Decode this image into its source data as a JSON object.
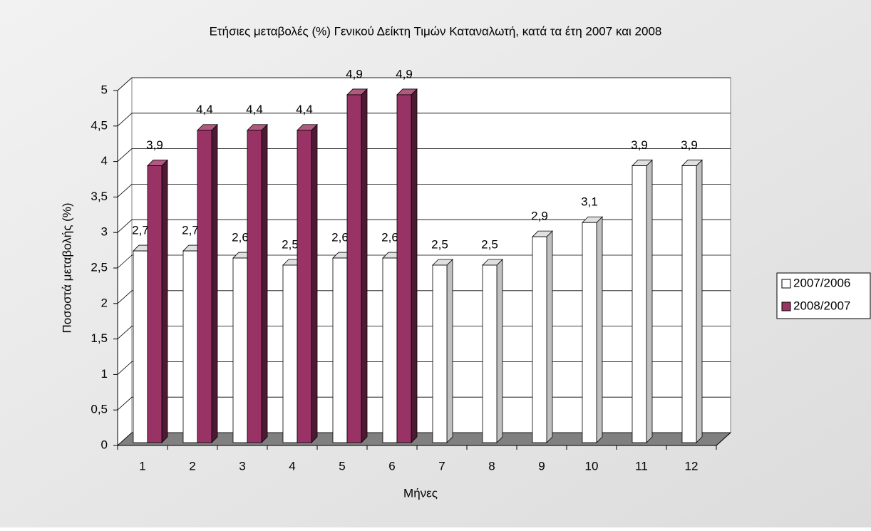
{
  "chart_data": {
    "type": "bar3d",
    "title": "Ετήσιες μεταβολές (%) Γενικού Δείκτη Τιμών Καταναλωτή, κατά τα έτη 2007 και 2008",
    "x_label": "Μήνες",
    "y_label": "Ποσοστά μεταβολής (%)",
    "categories": [
      "1",
      "2",
      "3",
      "4",
      "5",
      "6",
      "7",
      "8",
      "9",
      "10",
      "11",
      "12"
    ],
    "series": [
      {
        "name": "2007/2006",
        "color": "#ffffff",
        "values": [
          2.7,
          2.7,
          2.6,
          2.5,
          2.6,
          2.6,
          2.5,
          2.5,
          2.9,
          3.1,
          3.9,
          3.9
        ],
        "value_labels": [
          "2,7",
          "2,7",
          "2,6",
          "2,5",
          "2,6",
          "2,6",
          "2,5",
          "2,5",
          "2,9",
          "3,1",
          "3,9",
          "3,9"
        ]
      },
      {
        "name": "2008/2007",
        "color": "#993366",
        "values": [
          3.9,
          4.4,
          4.4,
          4.4,
          4.9,
          4.9,
          null,
          null,
          null,
          null,
          null,
          null
        ],
        "value_labels": [
          "3,9",
          "4,4",
          "4,4",
          "4,4",
          "4,9",
          "4,9",
          null,
          null,
          null,
          null,
          null,
          null
        ]
      }
    ],
    "ylim": [
      0,
      5
    ],
    "yticks": [
      0,
      {
        "value": 0.5,
        "label": "0,5"
      },
      1,
      {
        "value": 1.5,
        "label": "1,5"
      },
      2,
      {
        "value": 2.5,
        "label": "2,5"
      },
      3,
      {
        "value": 3.5,
        "label": "3,5"
      },
      4,
      {
        "value": 4.5,
        "label": "4,5"
      },
      5
    ],
    "grid": true,
    "legend": "right"
  }
}
